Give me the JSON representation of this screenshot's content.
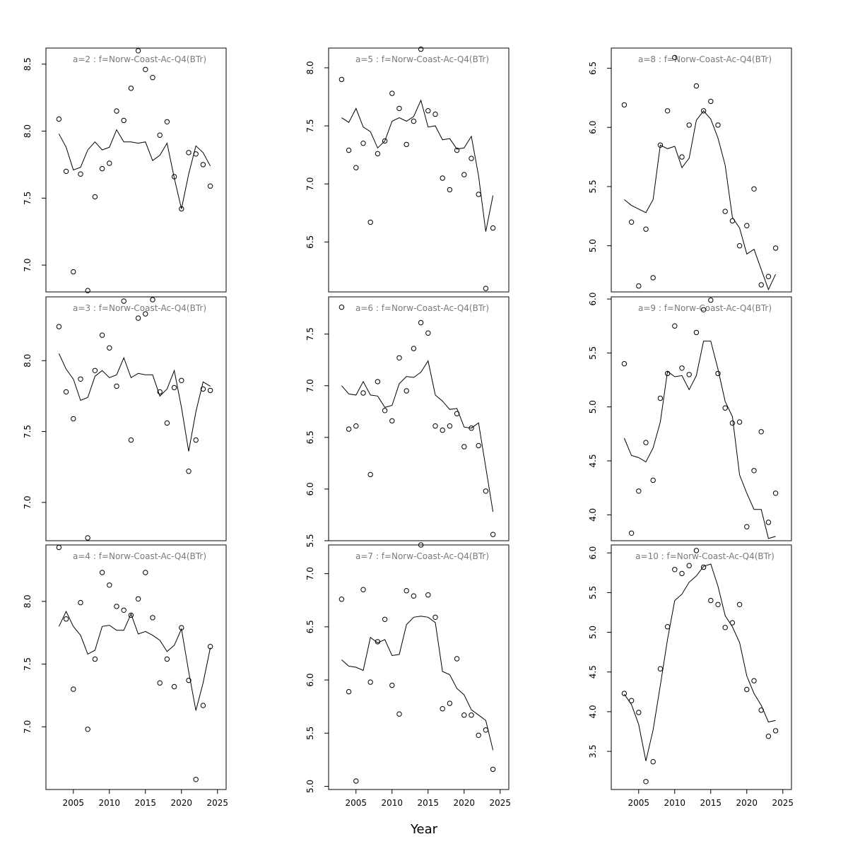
{
  "chart_data": {
    "type": "scatter+line",
    "xlabel": "Year",
    "x": [
      2003,
      2004,
      2005,
      2006,
      2007,
      2008,
      2009,
      2010,
      2011,
      2012,
      2013,
      2014,
      2015,
      2016,
      2017,
      2018,
      2019,
      2020,
      2021,
      2022,
      2023,
      2024
    ],
    "x_ticks": [
      2005,
      2010,
      2015,
      2020,
      2025
    ],
    "xlim": [
      2001.2,
      2026.2
    ],
    "line_color": "#000000",
    "point_color": "#000000",
    "title_color": "#7a7a7a",
    "panels": [
      {
        "title": "a=2 : f=Norw-Coast-Ac-Q4(BTr)",
        "ylim": [
          6.8,
          8.62
        ],
        "y_ticks": [
          7.0,
          7.5,
          8.0,
          8.5
        ],
        "observed": [
          8.09,
          7.7,
          6.95,
          7.68,
          6.81,
          7.51,
          7.72,
          7.76,
          8.15,
          8.08,
          8.32,
          8.6,
          8.46,
          8.4,
          7.97,
          8.07,
          7.66,
          7.42,
          7.84,
          7.83,
          7.75,
          7.59
        ],
        "fitted": [
          7.98,
          7.88,
          7.71,
          7.73,
          7.86,
          7.92,
          7.86,
          7.88,
          8.01,
          7.92,
          7.92,
          7.91,
          7.92,
          7.78,
          7.82,
          7.91,
          7.65,
          7.42,
          7.68,
          7.89,
          7.84,
          7.74
        ]
      },
      {
        "title": "a=3 : f=Norw-Coast-Ac-Q4(BTr)",
        "ylim": [
          6.73,
          8.45
        ],
        "y_ticks": [
          7.0,
          7.5,
          8.0
        ],
        "observed": [
          8.24,
          7.78,
          7.59,
          7.87,
          6.75,
          7.93,
          8.18,
          8.09,
          7.82,
          8.42,
          7.44,
          8.3,
          8.33,
          8.43,
          7.78,
          7.56,
          7.81,
          7.86,
          7.22,
          7.44,
          7.8,
          7.79
        ],
        "fitted": [
          8.05,
          7.94,
          7.87,
          7.72,
          7.74,
          7.89,
          7.93,
          7.88,
          7.9,
          8.02,
          7.88,
          7.91,
          7.9,
          7.9,
          7.75,
          7.8,
          7.93,
          7.67,
          7.36,
          7.64,
          7.85,
          7.82
        ]
      },
      {
        "title": "a=4 : f=Norw-Coast-Ac-Q4(BTr)",
        "ylim": [
          6.5,
          8.45
        ],
        "y_ticks": [
          7.0,
          7.5,
          8.0
        ],
        "observed": [
          8.43,
          7.86,
          7.3,
          7.99,
          6.98,
          7.54,
          8.23,
          8.13,
          7.96,
          7.93,
          7.89,
          8.02,
          8.23,
          7.87,
          7.35,
          7.54,
          7.32,
          7.79,
          7.37,
          6.58,
          7.17,
          7.64
        ],
        "fitted": [
          7.8,
          7.92,
          7.8,
          7.73,
          7.58,
          7.61,
          7.8,
          7.81,
          7.77,
          7.77,
          7.9,
          7.74,
          7.76,
          7.73,
          7.69,
          7.6,
          7.65,
          7.78,
          7.44,
          7.13,
          7.35,
          7.63
        ]
      },
      {
        "title": "a=5 : f=Norw-Coast-Ac-Q4(BTr)",
        "ylim": [
          6.07,
          8.17
        ],
        "y_ticks": [
          6.5,
          7.0,
          7.5,
          8.0
        ],
        "observed": [
          7.9,
          7.29,
          7.14,
          7.35,
          6.67,
          7.26,
          7.37,
          7.78,
          7.65,
          7.34,
          7.54,
          8.16,
          7.63,
          7.6,
          7.05,
          6.95,
          7.29,
          7.08,
          7.22,
          6.91,
          6.1,
          6.62
        ],
        "fitted": [
          7.57,
          7.53,
          7.65,
          7.49,
          7.45,
          7.31,
          7.37,
          7.54,
          7.57,
          7.54,
          7.58,
          7.72,
          7.49,
          7.5,
          7.38,
          7.39,
          7.3,
          7.31,
          7.41,
          7.07,
          6.59,
          6.9
        ]
      },
      {
        "title": "a=6 : f=Norw-Coast-Ac-Q4(BTr)",
        "ylim": [
          5.5,
          7.86
        ],
        "y_ticks": [
          5.5,
          6.0,
          6.5,
          7.0,
          7.5
        ],
        "observed": [
          7.76,
          6.58,
          6.61,
          6.93,
          6.14,
          7.04,
          6.76,
          6.66,
          7.27,
          6.95,
          7.36,
          7.61,
          7.51,
          6.61,
          6.57,
          6.61,
          6.73,
          6.41,
          6.59,
          6.42,
          5.98,
          5.56
        ],
        "fitted": [
          7.0,
          6.92,
          6.91,
          7.04,
          6.91,
          6.9,
          6.79,
          6.81,
          7.02,
          7.09,
          7.08,
          7.13,
          7.24,
          6.91,
          6.85,
          6.77,
          6.78,
          6.6,
          6.59,
          6.64,
          6.21,
          5.78
        ]
      },
      {
        "title": "a=7 : f=Norw-Coast-Ac-Q4(BTr)",
        "ylim": [
          4.97,
          7.27
        ],
        "y_ticks": [
          5.0,
          5.5,
          6.0,
          6.5,
          7.0
        ],
        "observed": [
          6.76,
          5.89,
          5.05,
          6.85,
          5.98,
          6.36,
          6.57,
          5.95,
          5.68,
          6.84,
          6.79,
          7.27,
          6.8,
          6.59,
          5.73,
          5.78,
          6.2,
          5.67,
          5.67,
          5.48,
          5.53,
          5.16
        ],
        "fitted": [
          6.19,
          6.13,
          6.12,
          6.09,
          6.4,
          6.35,
          6.38,
          6.23,
          6.24,
          6.52,
          6.59,
          6.6,
          6.59,
          6.54,
          6.08,
          6.05,
          5.92,
          5.86,
          5.72,
          5.67,
          5.62,
          5.34
        ]
      },
      {
        "title": "a=8 : f=Norw-Coast-Ac-Q4(BTr)",
        "ylim": [
          4.61,
          6.67
        ],
        "y_ticks": [
          5.0,
          5.5,
          6.0,
          6.5
        ],
        "observed": [
          6.19,
          5.2,
          4.66,
          5.14,
          4.73,
          5.85,
          6.14,
          6.59,
          5.75,
          6.02,
          6.35,
          6.14,
          6.22,
          6.02,
          5.29,
          5.21,
          5.0,
          5.17,
          5.48,
          4.67,
          4.74,
          4.98
        ],
        "fitted": [
          5.39,
          5.34,
          5.31,
          5.28,
          5.39,
          5.85,
          5.82,
          5.84,
          5.66,
          5.74,
          6.06,
          6.14,
          6.07,
          5.91,
          5.68,
          5.24,
          5.15,
          4.93,
          4.97,
          4.8,
          4.63,
          4.76
        ]
      },
      {
        "title": "a=9 : f=Norw-Coast-Ac-Q4(BTr)",
        "ylim": [
          3.76,
          6.02
        ],
        "y_ticks": [
          4.0,
          4.5,
          5.0,
          5.5,
          6.0
        ],
        "observed": [
          5.4,
          3.83,
          4.22,
          4.67,
          4.32,
          5.08,
          5.31,
          5.75,
          5.36,
          5.3,
          5.69,
          5.9,
          5.99,
          5.31,
          4.99,
          4.85,
          4.86,
          3.89,
          4.41,
          4.77,
          3.93,
          4.2
        ],
        "fitted": [
          4.71,
          4.55,
          4.53,
          4.49,
          4.62,
          4.86,
          5.33,
          5.28,
          5.29,
          5.16,
          5.29,
          5.61,
          5.61,
          5.35,
          5.05,
          4.91,
          4.37,
          4.2,
          4.05,
          4.05,
          3.78,
          3.8
        ]
      },
      {
        "title": "a=10 : f=Norw-Coast-Ac-Q4(BTr)",
        "ylim": [
          3.02,
          6.1
        ],
        "y_ticks": [
          3.5,
          4.0,
          4.5,
          5.0,
          5.5,
          6.0
        ],
        "observed": [
          4.23,
          4.14,
          3.99,
          3.12,
          3.37,
          4.54,
          5.07,
          5.79,
          5.74,
          5.84,
          6.03,
          5.82,
          5.4,
          5.35,
          5.06,
          5.12,
          5.35,
          4.28,
          4.39,
          4.02,
          3.69,
          3.76
        ],
        "fitted": [
          4.22,
          4.09,
          3.84,
          3.38,
          3.77,
          4.33,
          4.91,
          5.4,
          5.48,
          5.63,
          5.71,
          5.83,
          5.86,
          5.58,
          5.21,
          5.07,
          4.87,
          4.45,
          4.23,
          4.08,
          3.87,
          3.89
        ]
      }
    ]
  }
}
